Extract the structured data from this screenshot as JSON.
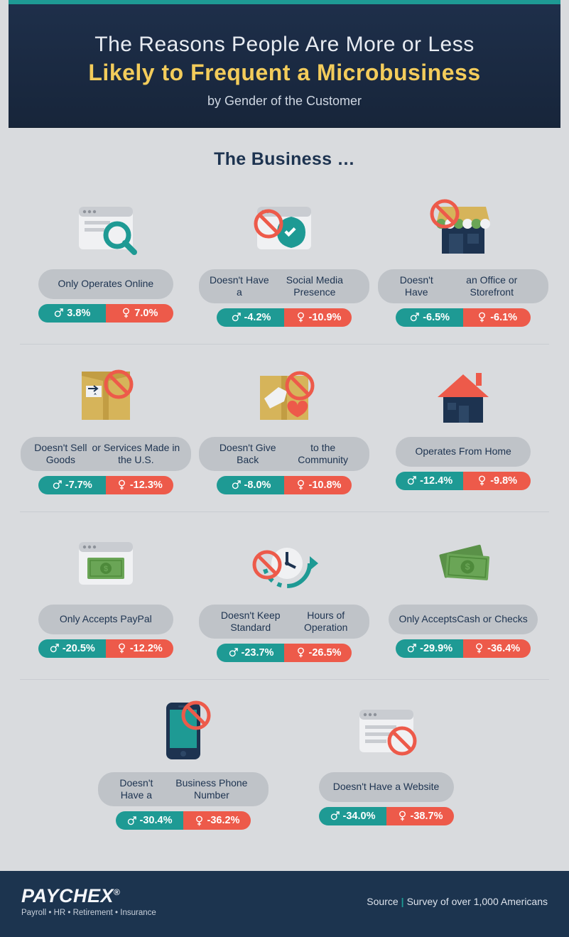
{
  "header": {
    "title_top": "The Reasons People Are More or Less",
    "title_bold": "Likely to Frequent a Microbusiness",
    "subtitle": "by Gender of the Customer"
  },
  "section_title": "The Business …",
  "colors": {
    "male": "#1e9a94",
    "female": "#ed5a4a",
    "navy": "#1d3350",
    "bg": "#d9dbde",
    "pill": "#bfc3c8",
    "yellow": "#f3cc5b",
    "footer": "#1c344f",
    "gold_icon": "#d6b45a",
    "green_money": "#6aa556"
  },
  "rows": [
    [
      {
        "icon": "browser-search",
        "label": "Only Operates Online",
        "male": "3.8%",
        "female": "7.0%"
      },
      {
        "icon": "no-social",
        "label": "Doesn't Have a\nSocial Media Presence",
        "male": "-4.2%",
        "female": "-10.9%"
      },
      {
        "icon": "no-store",
        "label": "Doesn't Have\nan Office or Storefront",
        "male": "-6.5%",
        "female": "-6.1%"
      }
    ],
    [
      {
        "icon": "no-us-box",
        "label": "Doesn't Sell Goods\nor Services Made in the U.S.",
        "male": "-7.7%",
        "female": "-12.3%"
      },
      {
        "icon": "no-give-back",
        "label": "Doesn't Give Back\nto the Community",
        "male": "-8.0%",
        "female": "-10.8%"
      },
      {
        "icon": "home",
        "label": "Operates From Home",
        "male": "-12.4%",
        "female": "-9.8%"
      }
    ],
    [
      {
        "icon": "paypal",
        "label": "Only Accepts PayPal",
        "male": "-20.5%",
        "female": "-12.2%"
      },
      {
        "icon": "no-hours",
        "label": "Doesn't Keep Standard\nHours of Operation",
        "male": "-23.7%",
        "female": "-26.5%"
      },
      {
        "icon": "cash",
        "label": "Only Accepts\nCash or Checks",
        "male": "-29.9%",
        "female": "-36.4%"
      }
    ],
    [
      {
        "icon": "no-phone",
        "label": "Doesn't Have a\nBusiness Phone Number",
        "male": "-30.4%",
        "female": "-36.2%"
      },
      {
        "icon": "no-website",
        "label": "Doesn't Have a Website",
        "male": "-34.0%",
        "female": "-38.7%"
      }
    ]
  ],
  "footer": {
    "brand": "PAYCHEX",
    "tagline": "Payroll • HR • Retirement • Insurance",
    "source_label": "Source",
    "source_value": "Survey of over 1,000 Americans"
  }
}
